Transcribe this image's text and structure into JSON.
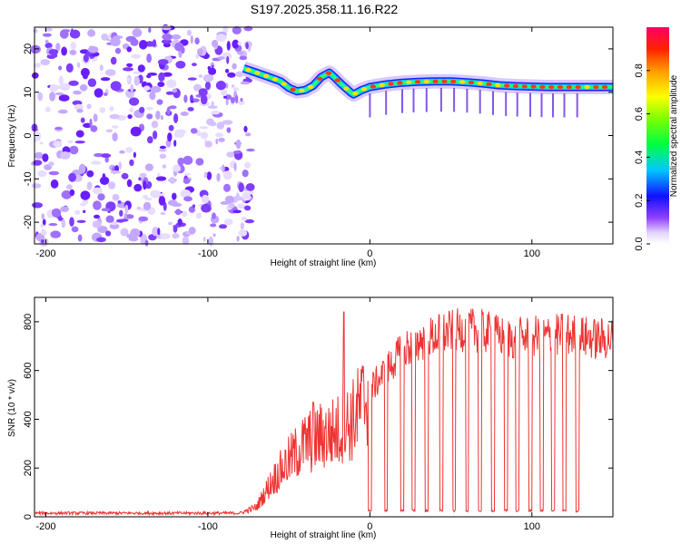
{
  "title": "S197.2025.358.11.16.R22",
  "chart_data": [
    {
      "type": "heatmap",
      "name": "spectrogram",
      "xlabel": "Height of straight line (km)",
      "ylabel": "Frequency (Hz)",
      "xlim": [
        -207,
        150
      ],
      "ylim": [
        -25,
        25
      ],
      "xticks": [
        -200,
        -100,
        0,
        100
      ],
      "yticks": [
        20,
        10,
        0,
        -10,
        -20
      ],
      "noise_region_x": [
        -207,
        -73
      ],
      "signal_track": {
        "x": [
          -78,
          -70,
          -60,
          -55,
          -50,
          -45,
          -40,
          -35,
          -30,
          -25,
          -22,
          -18,
          -15,
          -12,
          -10,
          -5,
          0,
          10,
          20,
          30,
          40,
          50,
          60,
          70,
          80,
          90,
          100,
          110,
          120,
          130,
          140,
          150
        ],
        "freq_hz": [
          15.5,
          14.5,
          13.2,
          12.5,
          11,
          10.2,
          10.5,
          11.5,
          13.5,
          14.5,
          13.5,
          12,
          11,
          10,
          9.5,
          10.5,
          11.2,
          11.8,
          12.2,
          12.4,
          12.5,
          12.5,
          12.3,
          12,
          11.6,
          11.4,
          11.3,
          11.2,
          11.2,
          11.2,
          11.2,
          11.2
        ]
      },
      "colorbar": {
        "label": "Normalized spectral amplitude",
        "ticks": [
          0.0,
          0.2,
          0.4,
          0.6,
          0.8
        ],
        "range": [
          0,
          1
        ]
      }
    },
    {
      "type": "line",
      "name": "snr",
      "xlabel": "Height of straight line (km)",
      "ylabel": "SNR (10 * v/v)",
      "xlim": [
        -207,
        150
      ],
      "ylim": [
        0,
        900
      ],
      "xticks": [
        -200,
        -100,
        0,
        100
      ],
      "yticks": [
        0,
        200,
        400,
        600,
        800
      ],
      "color": "#ee3333",
      "trend": {
        "x": [
          -207,
          -80,
          -70,
          -60,
          -50,
          -40,
          -30,
          -20,
          -10,
          0,
          10,
          20,
          30,
          40,
          50,
          60,
          70,
          80,
          90,
          100,
          110,
          120,
          130,
          140,
          150
        ],
        "y": [
          15,
          15,
          40,
          150,
          230,
          300,
          330,
          350,
          400,
          520,
          600,
          680,
          720,
          740,
          760,
          770,
          760,
          740,
          730,
          740,
          740,
          750,
          740,
          730,
          730
        ]
      },
      "spikes": [
        {
          "x": -16,
          "y": 840
        },
        {
          "x": -35,
          "y": 470
        }
      ],
      "dropouts_x": [
        0,
        10,
        20,
        27,
        35,
        44,
        52,
        60,
        68,
        76,
        84,
        91,
        99,
        106,
        113,
        120,
        128
      ]
    }
  ]
}
